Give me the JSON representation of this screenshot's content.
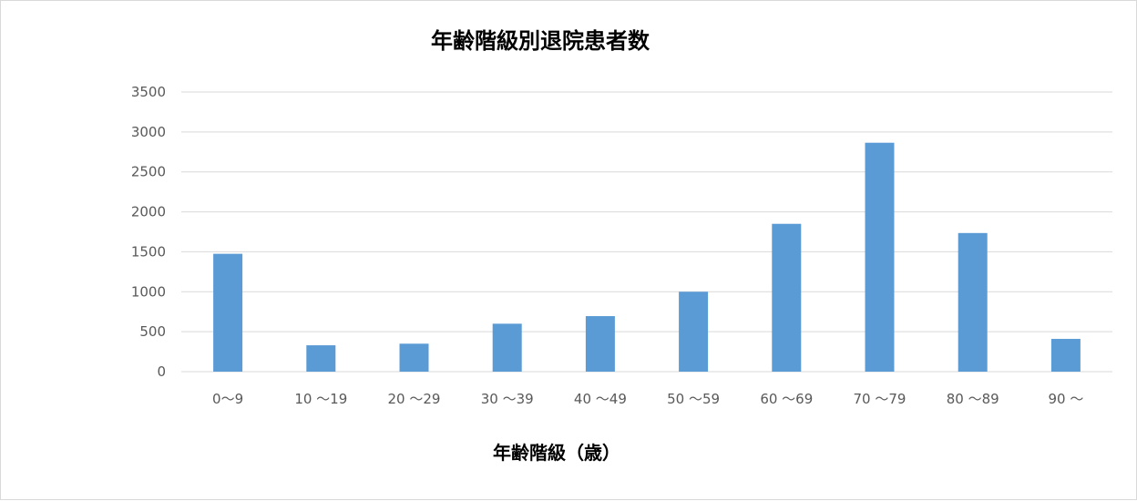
{
  "chart_data": {
    "type": "bar",
    "title": "年齢階級別退院患者数",
    "xlabel": "年齢階級（歳）",
    "ylabel": "",
    "categories": [
      "0〜9",
      "10 〜19",
      "20 〜29",
      "30 〜39",
      "40 〜49",
      "50 〜59",
      "60 〜69",
      "70 〜79",
      "80 〜89",
      "90 〜"
    ],
    "values": [
      1475,
      330,
      350,
      600,
      695,
      1000,
      1850,
      2865,
      1735,
      410
    ],
    "ylim": [
      0,
      3500
    ],
    "yticks": [
      0,
      500,
      1000,
      1500,
      2000,
      2500,
      3000,
      3500
    ],
    "grid": true,
    "legend": "none",
    "bar_color": "#5b9bd5",
    "grid_color": "#d9d9d9"
  }
}
